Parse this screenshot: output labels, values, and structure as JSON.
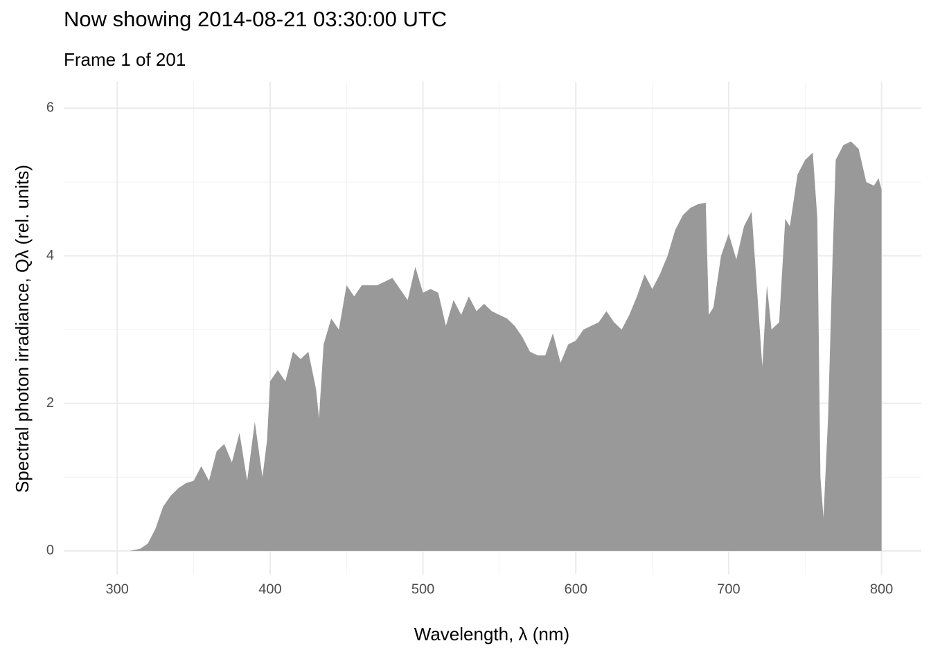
{
  "chart_data": {
    "type": "area",
    "title": "Now showing 2014-08-21 03:30:00 UTC",
    "subtitle": "Frame 1 of 201",
    "x_label": "Wavelength,  λ (nm)",
    "y_label": "Spectral photon irradiance,  Qλ (rel. units)",
    "color": "#999999",
    "grid": true,
    "xlim": [
      265,
      826
    ],
    "ylim": [
      -0.32,
      6.36
    ],
    "xticks": [
      300,
      400,
      500,
      600,
      700,
      800
    ],
    "yticks": [
      0,
      2,
      4,
      6
    ],
    "x_minor_breaks": [
      350,
      450,
      550,
      650,
      750
    ],
    "y_minor_breaks": [
      1,
      3,
      5
    ],
    "x": [
      308,
      315,
      320,
      325,
      330,
      335,
      340,
      345,
      350,
      355,
      360,
      365,
      370,
      375,
      380,
      385,
      390,
      395,
      398,
      400,
      405,
      410,
      415,
      420,
      425,
      430,
      432,
      435,
      440,
      445,
      450,
      455,
      460,
      465,
      470,
      475,
      480,
      485,
      490,
      495,
      500,
      505,
      510,
      515,
      520,
      525,
      530,
      535,
      540,
      545,
      550,
      555,
      560,
      565,
      570,
      575,
      580,
      585,
      590,
      595,
      600,
      605,
      610,
      615,
      620,
      625,
      630,
      635,
      640,
      645,
      650,
      655,
      660,
      665,
      670,
      675,
      680,
      685,
      687,
      690,
      695,
      700,
      705,
      710,
      715,
      720,
      722,
      725,
      728,
      733,
      737,
      740,
      745,
      750,
      755,
      758,
      760,
      762,
      765,
      768,
      770,
      775,
      780,
      785,
      790,
      795,
      798,
      800
    ],
    "values": [
      0,
      0.03,
      0.1,
      0.3,
      0.6,
      0.75,
      0.85,
      0.92,
      0.95,
      1.15,
      0.95,
      1.35,
      1.45,
      1.2,
      1.6,
      0.95,
      1.75,
      1.0,
      1.5,
      2.3,
      2.45,
      2.3,
      2.7,
      2.6,
      2.7,
      2.2,
      1.8,
      2.8,
      3.15,
      3.0,
      3.6,
      3.45,
      3.6,
      3.6,
      3.6,
      3.65,
      3.7,
      3.55,
      3.4,
      3.85,
      3.5,
      3.55,
      3.5,
      3.05,
      3.4,
      3.2,
      3.45,
      3.25,
      3.35,
      3.25,
      3.2,
      3.15,
      3.05,
      2.9,
      2.7,
      2.65,
      2.65,
      2.95,
      2.55,
      2.8,
      2.85,
      3.0,
      3.05,
      3.1,
      3.25,
      3.1,
      3.0,
      3.2,
      3.45,
      3.75,
      3.55,
      3.75,
      4.0,
      4.35,
      4.55,
      4.65,
      4.7,
      4.72,
      3.2,
      3.3,
      4.0,
      4.3,
      3.95,
      4.4,
      4.6,
      3.1,
      2.5,
      3.6,
      3.0,
      3.1,
      4.5,
      4.4,
      5.1,
      5.3,
      5.4,
      4.5,
      1.0,
      0.45,
      1.8,
      4.0,
      5.3,
      5.5,
      5.55,
      5.45,
      5.0,
      4.95,
      5.05,
      4.9
    ]
  }
}
